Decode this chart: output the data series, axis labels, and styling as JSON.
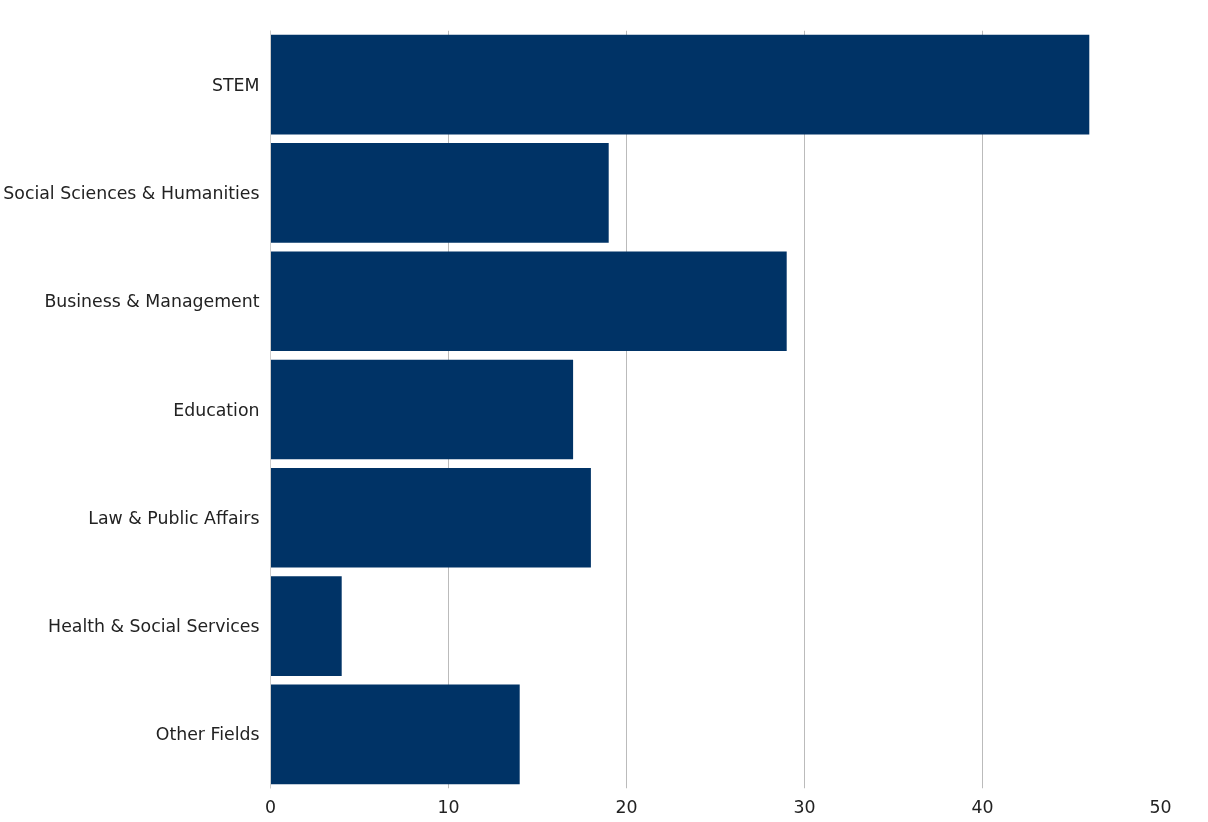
{
  "chart_data": {
    "type": "bar",
    "orientation": "horizontal",
    "categories": [
      "STEM",
      "Social Sciences & Humanities",
      "Business & Management",
      "Education",
      "Law & Public Affairs",
      "Health & Social Services",
      "Other Fields"
    ],
    "values": [
      46,
      19,
      29,
      17,
      18,
      4,
      14
    ],
    "color": "#003366",
    "xlim": [
      0,
      50
    ],
    "xticks": [
      0,
      10,
      20,
      30,
      40,
      50
    ],
    "grid": "x"
  }
}
